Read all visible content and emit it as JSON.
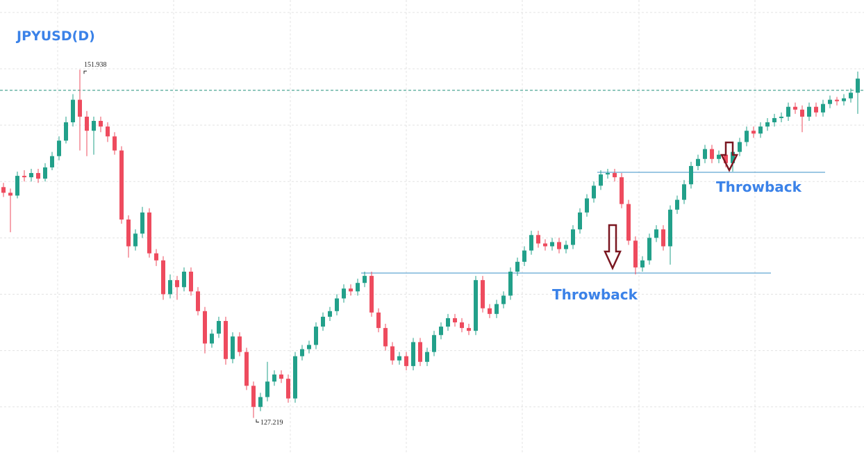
{
  "chart_data": {
    "type": "candlestick",
    "title": "JPYUSD(D)",
    "up_color": "#22a08a",
    "down_color": "#ee4b5e",
    "xlim": [
      -0.5,
      123.9
    ],
    "xticks": [
      7.8,
      24.5,
      41.3,
      58,
      74.7,
      91.5,
      108.2
    ],
    "ylim": [
      124.73,
      156.88
    ],
    "yticks": [
      128,
      132,
      136,
      140,
      144,
      148,
      152,
      156
    ],
    "grid": true,
    "price_line": {
      "value": 150.47,
      "color": "#1f8f7a"
    },
    "levels": [
      {
        "value": 137.5,
        "color": "#3a8fc7"
      },
      {
        "value": 144.65,
        "color": "#3a8fc7"
      }
    ],
    "annotations": [
      {
        "text": "Throwback"
      },
      {
        "text": "Throwback"
      }
    ],
    "candles": [
      [
        143.6,
        143.9,
        142.9,
        143.2
      ],
      [
        143.2,
        143.5,
        140.4,
        143.0
      ],
      [
        143.0,
        144.7,
        142.8,
        144.4
      ],
      [
        144.4,
        144.8,
        144.0,
        144.3
      ],
      [
        144.3,
        144.9,
        144.0,
        144.6
      ],
      [
        144.6,
        144.9,
        143.9,
        144.2
      ],
      [
        144.2,
        145.3,
        144.0,
        145.0
      ],
      [
        145.0,
        146.1,
        144.8,
        145.8
      ],
      [
        145.8,
        147.2,
        145.5,
        146.9
      ],
      [
        146.9,
        148.6,
        146.7,
        148.2
      ],
      [
        148.2,
        150.2,
        147.9,
        149.8
      ],
      [
        149.8,
        151.938,
        146.2,
        148.6
      ],
      [
        148.6,
        149.0,
        145.8,
        147.6
      ],
      [
        147.6,
        148.6,
        145.9,
        148.3
      ],
      [
        148.3,
        148.6,
        147.5,
        147.9
      ],
      [
        147.9,
        148.2,
        146.8,
        147.2
      ],
      [
        147.2,
        147.5,
        145.9,
        146.2
      ],
      [
        146.2,
        146.5,
        141.0,
        141.3
      ],
      [
        141.3,
        141.6,
        138.6,
        139.4
      ],
      [
        139.4,
        140.6,
        139.1,
        140.3
      ],
      [
        140.3,
        142.2,
        140.0,
        141.8
      ],
      [
        141.8,
        142.1,
        138.6,
        138.9
      ],
      [
        138.9,
        139.2,
        138.0,
        138.4
      ],
      [
        138.4,
        138.7,
        135.6,
        136.0
      ],
      [
        136.0,
        137.4,
        135.7,
        137.0
      ],
      [
        137.0,
        137.3,
        135.6,
        136.5
      ],
      [
        136.5,
        137.9,
        136.2,
        137.6
      ],
      [
        137.6,
        137.9,
        135.9,
        136.2
      ],
      [
        136.2,
        136.5,
        134.5,
        134.8
      ],
      [
        134.8,
        135.1,
        131.8,
        132.5
      ],
      [
        132.5,
        133.5,
        132.2,
        133.2
      ],
      [
        133.2,
        134.4,
        132.9,
        134.1
      ],
      [
        134.1,
        134.4,
        131.0,
        131.4
      ],
      [
        131.4,
        133.3,
        131.1,
        133.0
      ],
      [
        133.0,
        133.3,
        131.6,
        131.9
      ],
      [
        131.9,
        132.2,
        129.2,
        129.5
      ],
      [
        129.5,
        129.8,
        127.219,
        128.0
      ],
      [
        128.0,
        129.0,
        127.7,
        128.7
      ],
      [
        128.7,
        131.2,
        128.4,
        129.8
      ],
      [
        129.8,
        130.6,
        129.5,
        130.3
      ],
      [
        130.3,
        130.6,
        129.7,
        130.0
      ],
      [
        130.0,
        130.3,
        128.3,
        128.6
      ],
      [
        128.6,
        131.9,
        128.3,
        131.6
      ],
      [
        131.6,
        132.4,
        131.3,
        132.1
      ],
      [
        132.1,
        132.7,
        131.8,
        132.4
      ],
      [
        132.4,
        134.0,
        132.1,
        133.7
      ],
      [
        133.7,
        134.7,
        133.4,
        134.4
      ],
      [
        134.4,
        135.1,
        134.1,
        134.8
      ],
      [
        134.8,
        136.0,
        134.5,
        135.7
      ],
      [
        135.7,
        136.7,
        135.4,
        136.4
      ],
      [
        136.4,
        136.7,
        135.9,
        136.2
      ],
      [
        136.2,
        137.1,
        135.9,
        136.8
      ],
      [
        136.8,
        137.6,
        136.5,
        137.3
      ],
      [
        137.3,
        137.6,
        134.4,
        134.7
      ],
      [
        134.7,
        135.0,
        133.3,
        133.6
      ],
      [
        133.6,
        133.9,
        132.0,
        132.3
      ],
      [
        132.3,
        132.6,
        131.0,
        131.3
      ],
      [
        131.3,
        131.9,
        131.0,
        131.6
      ],
      [
        131.6,
        131.9,
        130.6,
        130.9
      ],
      [
        130.9,
        132.9,
        130.6,
        132.6
      ],
      [
        132.6,
        132.9,
        130.9,
        131.2
      ],
      [
        131.2,
        132.2,
        130.9,
        131.9
      ],
      [
        131.9,
        133.4,
        131.6,
        133.1
      ],
      [
        133.1,
        134.0,
        132.8,
        133.7
      ],
      [
        133.7,
        134.6,
        133.4,
        134.3
      ],
      [
        134.3,
        134.6,
        133.7,
        134.0
      ],
      [
        134.0,
        134.3,
        133.3,
        133.6
      ],
      [
        133.6,
        133.9,
        133.1,
        133.4
      ],
      [
        133.4,
        137.3,
        133.1,
        137.0
      ],
      [
        137.0,
        137.3,
        134.7,
        135.0
      ],
      [
        135.0,
        135.3,
        134.3,
        134.6
      ],
      [
        134.6,
        135.6,
        134.3,
        135.3
      ],
      [
        135.3,
        136.2,
        135.0,
        135.9
      ],
      [
        135.9,
        137.9,
        135.6,
        137.6
      ],
      [
        137.6,
        138.6,
        137.3,
        138.3
      ],
      [
        138.3,
        139.4,
        138.0,
        139.1
      ],
      [
        139.1,
        140.5,
        138.8,
        140.2
      ],
      [
        140.2,
        140.5,
        139.3,
        139.6
      ],
      [
        139.6,
        139.9,
        139.1,
        139.4
      ],
      [
        139.4,
        140.0,
        139.1,
        139.7
      ],
      [
        139.7,
        140.0,
        138.9,
        139.2
      ],
      [
        139.2,
        139.8,
        138.9,
        139.5
      ],
      [
        139.5,
        140.9,
        139.2,
        140.6
      ],
      [
        140.6,
        142.1,
        140.3,
        141.8
      ],
      [
        141.8,
        143.1,
        141.5,
        142.8
      ],
      [
        142.8,
        144.0,
        142.5,
        143.7
      ],
      [
        143.7,
        144.8,
        143.4,
        144.5
      ],
      [
        144.5,
        144.9,
        144.2,
        144.6
      ],
      [
        144.6,
        144.9,
        144.0,
        144.3
      ],
      [
        144.3,
        144.6,
        142.1,
        142.4
      ],
      [
        142.4,
        142.7,
        139.5,
        139.8
      ],
      [
        139.8,
        140.1,
        137.4,
        137.9
      ],
      [
        137.9,
        138.7,
        137.6,
        138.4
      ],
      [
        138.4,
        140.3,
        138.1,
        140.0
      ],
      [
        140.0,
        140.9,
        139.7,
        140.6
      ],
      [
        140.6,
        140.9,
        139.1,
        139.4
      ],
      [
        139.4,
        142.3,
        138.1,
        142.0
      ],
      [
        142.0,
        143.0,
        141.7,
        142.7
      ],
      [
        142.7,
        144.1,
        142.4,
        143.8
      ],
      [
        143.8,
        145.4,
        143.5,
        145.1
      ],
      [
        145.1,
        145.9,
        144.8,
        145.6
      ],
      [
        145.6,
        146.6,
        145.3,
        146.3
      ],
      [
        146.3,
        146.6,
        145.3,
        145.6
      ],
      [
        145.6,
        146.2,
        145.3,
        145.9
      ],
      [
        145.9,
        146.2,
        145.0,
        145.3
      ],
      [
        145.3,
        146.4,
        144.7,
        146.1
      ],
      [
        146.1,
        147.1,
        145.8,
        146.8
      ],
      [
        146.8,
        147.9,
        146.5,
        147.6
      ],
      [
        147.6,
        147.9,
        147.1,
        147.4
      ],
      [
        147.4,
        148.2,
        147.1,
        147.9
      ],
      [
        147.9,
        148.5,
        147.6,
        148.2
      ],
      [
        148.2,
        148.8,
        147.9,
        148.5
      ],
      [
        148.5,
        148.9,
        148.2,
        148.6
      ],
      [
        148.6,
        149.6,
        148.3,
        149.3
      ],
      [
        149.3,
        149.6,
        148.8,
        149.1
      ],
      [
        149.1,
        149.4,
        147.5,
        148.6
      ],
      [
        148.6,
        149.6,
        148.3,
        149.3
      ],
      [
        149.3,
        149.6,
        148.6,
        148.9
      ],
      [
        148.9,
        149.8,
        148.6,
        149.5
      ],
      [
        149.5,
        150.1,
        149.2,
        149.8
      ],
      [
        149.8,
        150.0,
        149.4,
        149.7
      ],
      [
        149.7,
        150.2,
        149.4,
        149.9
      ],
      [
        149.9,
        150.6,
        149.6,
        150.3
      ],
      [
        150.3,
        151.8,
        148.8,
        151.3
      ]
    ]
  }
}
